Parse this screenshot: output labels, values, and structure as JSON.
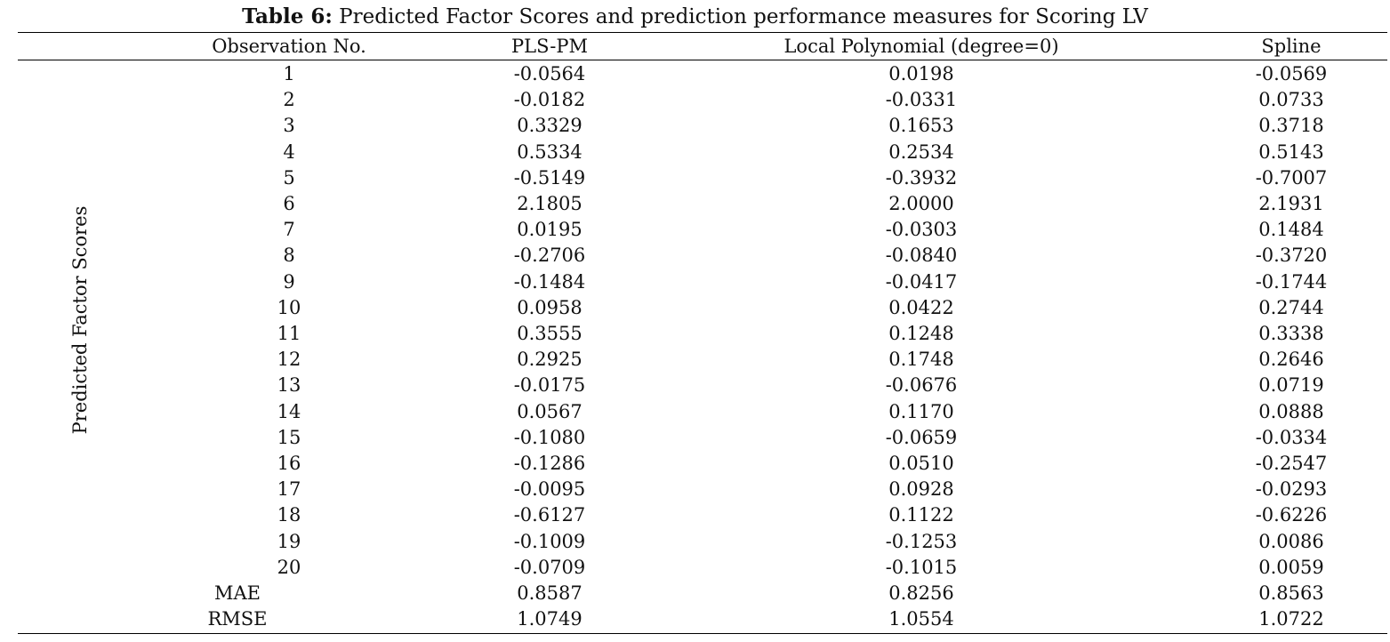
{
  "caption": {
    "label": "Table 6:",
    "text": " Predicted Factor Scores and prediction performance measures for Scoring LV"
  },
  "side_label": "Predicted Factor Scores",
  "columns": [
    "Observation No.",
    "PLS-PM",
    "Local Polynomial (degree=0)",
    "Spline"
  ],
  "rows": [
    {
      "obs": "1",
      "pls": "-0.0564",
      "lp": "0.0198",
      "spline": "-0.0569"
    },
    {
      "obs": "2",
      "pls": "-0.0182",
      "lp": "-0.0331",
      "spline": "0.0733"
    },
    {
      "obs": "3",
      "pls": "0.3329",
      "lp": "0.1653",
      "spline": "0.3718"
    },
    {
      "obs": "4",
      "pls": "0.5334",
      "lp": "0.2534",
      "spline": "0.5143"
    },
    {
      "obs": "5",
      "pls": "-0.5149",
      "lp": "-0.3932",
      "spline": "-0.7007"
    },
    {
      "obs": "6",
      "pls": "2.1805",
      "lp": "2.0000",
      "spline": "2.1931"
    },
    {
      "obs": "7",
      "pls": "0.0195",
      "lp": "-0.0303",
      "spline": "0.1484"
    },
    {
      "obs": "8",
      "pls": "-0.2706",
      "lp": "-0.0840",
      "spline": "-0.3720"
    },
    {
      "obs": "9",
      "pls": "-0.1484",
      "lp": "-0.0417",
      "spline": "-0.1744"
    },
    {
      "obs": "10",
      "pls": "0.0958",
      "lp": "0.0422",
      "spline": "0.2744"
    },
    {
      "obs": "11",
      "pls": "0.3555",
      "lp": "0.1248",
      "spline": "0.3338"
    },
    {
      "obs": "12",
      "pls": "0.2925",
      "lp": "0.1748",
      "spline": "0.2646"
    },
    {
      "obs": "13",
      "pls": "-0.0175",
      "lp": "-0.0676",
      "spline": "0.0719"
    },
    {
      "obs": "14",
      "pls": "0.0567",
      "lp": "0.1170",
      "spline": "0.0888"
    },
    {
      "obs": "15",
      "pls": "-0.1080",
      "lp": "-0.0659",
      "spline": "-0.0334"
    },
    {
      "obs": "16",
      "pls": "-0.1286",
      "lp": "0.0510",
      "spline": "-0.2547"
    },
    {
      "obs": "17",
      "pls": "-0.0095",
      "lp": "0.0928",
      "spline": "-0.0293"
    },
    {
      "obs": "18",
      "pls": "-0.6127",
      "lp": "0.1122",
      "spline": "-0.6226"
    },
    {
      "obs": "19",
      "pls": "-0.1009",
      "lp": "-0.1253",
      "spline": "0.0086"
    },
    {
      "obs": "20",
      "pls": "-0.0709",
      "lp": "-0.1015",
      "spline": "0.0059"
    }
  ],
  "summary": [
    {
      "label": "MAE",
      "pls": "0.8587",
      "lp": "0.8256",
      "spline": "0.8563"
    },
    {
      "label": "RMSE",
      "pls": "1.0749",
      "lp": "1.0554",
      "spline": "1.0722"
    }
  ]
}
